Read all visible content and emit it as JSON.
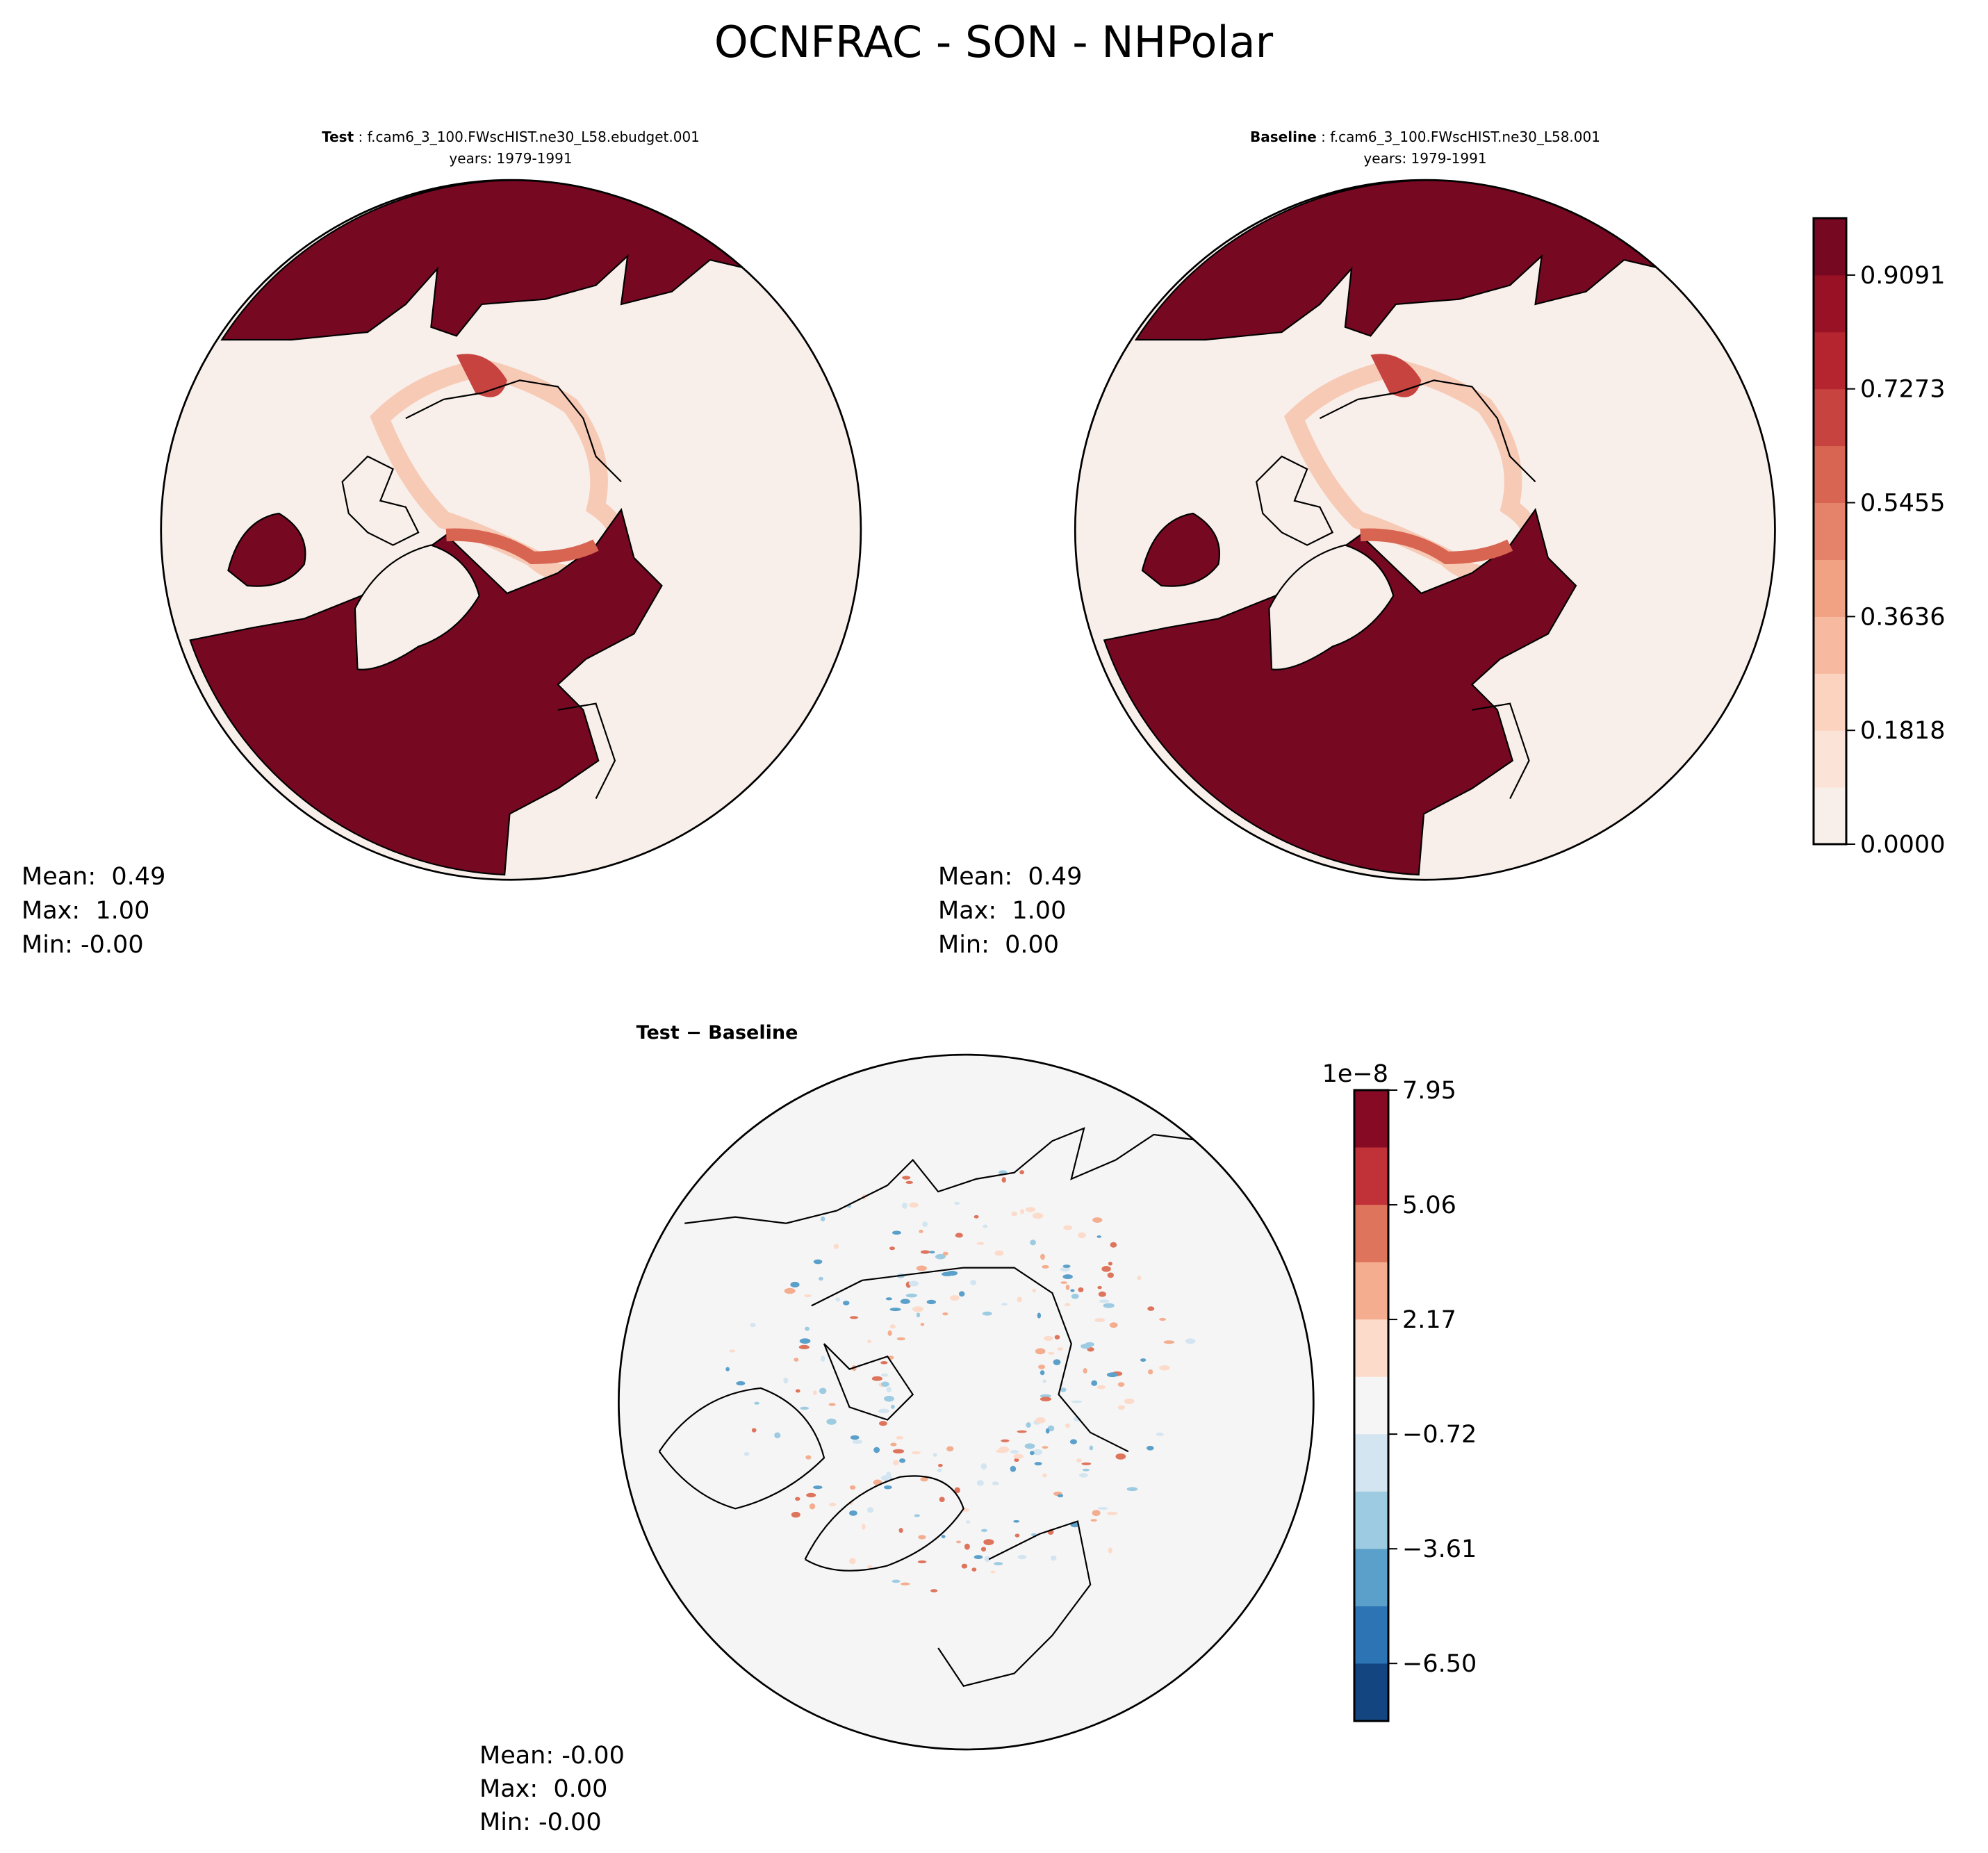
{
  "title": "OCNFRAC - SON - NHPolar",
  "panels": [
    {
      "label_bold": "Test",
      "label_rest": " : f.cam6_3_100.FWscHIST.ne30_L58.ebudget.001",
      "years": "years: 1979-1991",
      "stats": [
        "Mean:  0.49",
        "Max:  1.00",
        "Min: -0.00"
      ]
    },
    {
      "label_bold": "Baseline",
      "label_rest": " : f.cam6_3_100.FWscHIST.ne30_L58.001",
      "years": "years: 1979-1991",
      "stats": [
        "Mean:  0.49",
        "Max:  1.00",
        "Min:  0.00"
      ]
    },
    {
      "label_bold": "Test − Baseline",
      "stats": [
        "Mean: -0.00",
        "Max:  0.00",
        "Min: -0.00"
      ]
    }
  ],
  "chart_data": [
    {
      "type": "heatmap",
      "projection": "north-polar-stereographic",
      "colorbar": {
        "levels": [
          0.0,
          0.0909,
          0.1818,
          0.2727,
          0.3636,
          0.4545,
          0.5455,
          0.6364,
          0.7273,
          0.8182,
          0.9091,
          1.0
        ],
        "tick_labels": [
          "0.0000",
          "0.1818",
          "0.3636",
          "0.5455",
          "0.7273",
          "0.9091"
        ],
        "tick_values": [
          0.0,
          0.1818,
          0.3636,
          0.5455,
          0.7273,
          0.9091
        ],
        "colors": [
          "#f8efea",
          "#fbe3d8",
          "#fcd3bf",
          "#f7baa0",
          "#f0a283",
          "#e5826a",
          "#d86552",
          "#c6433f",
          "#b42530",
          "#991125",
          "#760822"
        ],
        "placement": "right"
      }
    },
    {
      "type": "heatmap",
      "projection": "north-polar-stereographic",
      "colorbar": {
        "offset_label": "1e−8",
        "range": [
          -7.95,
          7.95
        ],
        "tick_labels": [
          "7.95",
          "5.06",
          "2.17",
          "−0.72",
          "−3.61",
          "−6.50"
        ],
        "tick_values": [
          7.95,
          5.06,
          2.17,
          -0.72,
          -3.61,
          -6.5
        ],
        "colors": [
          "#870a24",
          "#c03238",
          "#de745c",
          "#f4ae8f",
          "#fcdbcb",
          "#f5f5f5",
          "#d3e5f0",
          "#9dcbe1",
          "#5aa0ca",
          "#2c74b3",
          "#134681"
        ],
        "placement": "right"
      }
    }
  ]
}
